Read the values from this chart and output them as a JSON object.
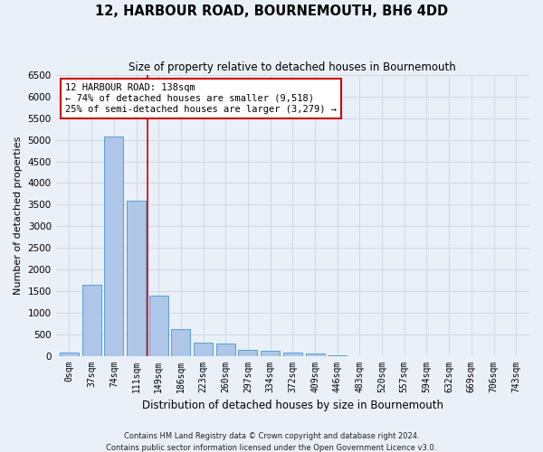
{
  "title": "12, HARBOUR ROAD, BOURNEMOUTH, BH6 4DD",
  "subtitle": "Size of property relative to detached houses in Bournemouth",
  "xlabel": "Distribution of detached houses by size in Bournemouth",
  "ylabel": "Number of detached properties",
  "footnote1": "Contains HM Land Registry data © Crown copyright and database right 2024.",
  "footnote2": "Contains public sector information licensed under the Open Government Licence v3.0.",
  "bar_labels": [
    "0sqm",
    "37sqm",
    "74sqm",
    "111sqm",
    "149sqm",
    "186sqm",
    "223sqm",
    "260sqm",
    "297sqm",
    "334sqm",
    "372sqm",
    "409sqm",
    "446sqm",
    "483sqm",
    "520sqm",
    "557sqm",
    "594sqm",
    "632sqm",
    "669sqm",
    "706sqm",
    "743sqm"
  ],
  "bar_values": [
    70,
    1650,
    5070,
    3600,
    1390,
    610,
    300,
    290,
    140,
    110,
    75,
    45,
    10,
    0,
    0,
    0,
    0,
    0,
    0,
    0,
    0
  ],
  "bar_color": "#aec6e8",
  "bar_edge_color": "#5a9fd4",
  "annotation_text1": "12 HARBOUR ROAD: 138sqm",
  "annotation_text2": "← 74% of detached houses are smaller (9,518)",
  "annotation_text3": "25% of semi-detached houses are larger (3,279) →",
  "annotation_box_color": "#ffffff",
  "annotation_border_color": "#cc0000",
  "vline_position": 3.5,
  "ylim": [
    0,
    6500
  ],
  "yticks": [
    0,
    500,
    1000,
    1500,
    2000,
    2500,
    3000,
    3500,
    4000,
    4500,
    5000,
    5500,
    6000,
    6500
  ],
  "grid_color": "#d0d8e8",
  "bg_color": "#eaf0f8"
}
